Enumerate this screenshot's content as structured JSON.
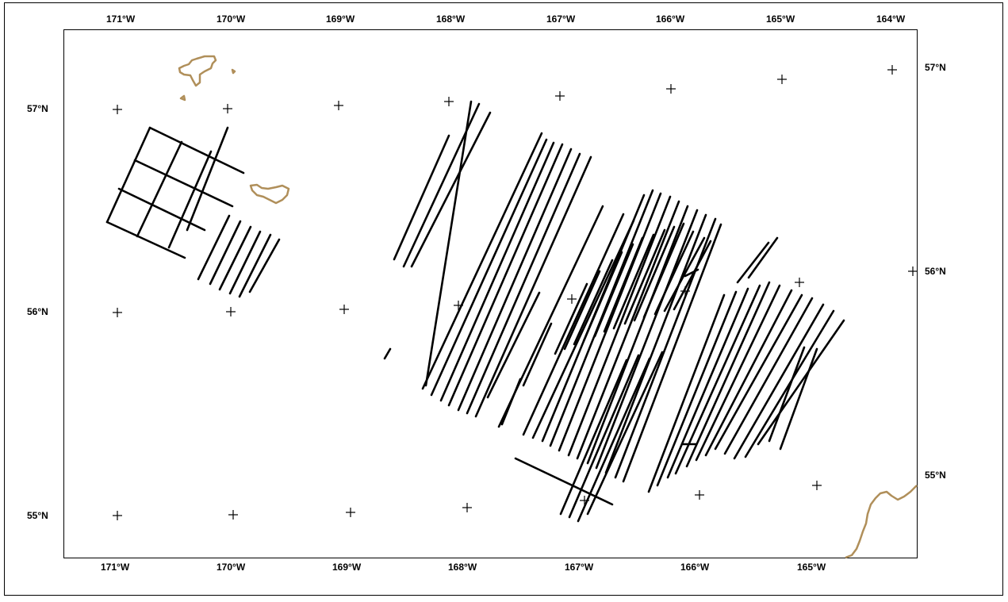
{
  "map": {
    "lon_ticks_top": [
      "171°W",
      "170°W",
      "169°W",
      "168°W",
      "167°W",
      "166°W",
      "165°W",
      "164°W"
    ],
    "lon_ticks_bottom": [
      "171°W",
      "170°W",
      "169°W",
      "168°W",
      "167°W",
      "166°W",
      "165°W"
    ],
    "lat_ticks_left": [
      "57°N",
      "56°N",
      "55°N"
    ],
    "lat_ticks_right": [
      "57°N",
      "56°N",
      "55°N"
    ],
    "colors": {
      "frame": "#000000",
      "coastline": "#b08f5a",
      "tracklines": "#000000",
      "graticule_marks": "#000000"
    },
    "features": [
      "coastline",
      "survey-tracklines",
      "graticule-crosses"
    ]
  }
}
